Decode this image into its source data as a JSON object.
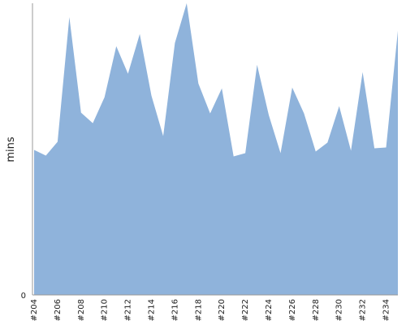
{
  "chart_data": {
    "type": "area",
    "title": "",
    "xlabel": "",
    "ylabel": "mins",
    "x": [
      "#204",
      "#205",
      "#206",
      "#207",
      "#208",
      "#209",
      "#210",
      "#211",
      "#212",
      "#213",
      "#214",
      "#215",
      "#216",
      "#217",
      "#218",
      "#219",
      "#220",
      "#221",
      "#222",
      "#223",
      "#224",
      "#225",
      "#226",
      "#227",
      "#228",
      "#229",
      "#230",
      "#231",
      "#232",
      "#233",
      "#234",
      "#235"
    ],
    "x_tick_labels": [
      "#204",
      "#206",
      "#208",
      "#210",
      "#212",
      "#214",
      "#216",
      "#218",
      "#220",
      "#222",
      "#224",
      "#226",
      "#228",
      "#230",
      "#232",
      "#234"
    ],
    "series": [
      {
        "values": [
          179,
          172,
          189,
          343,
          225,
          212,
          244,
          307,
          273,
          322,
          246,
          196,
          311,
          395,
          261,
          224,
          255,
          171,
          175,
          284,
          222,
          175,
          256,
          224,
          177,
          188,
          233,
          178,
          275,
          181,
          182,
          326
        ],
        "color": "#8fb3db"
      }
    ],
    "ylim": [
      0,
      360
    ],
    "y_ticks": [
      0
    ],
    "y_tick_labels": [
      "0"
    ],
    "grid": false,
    "legend": "none",
    "axis_color": "#999999"
  }
}
